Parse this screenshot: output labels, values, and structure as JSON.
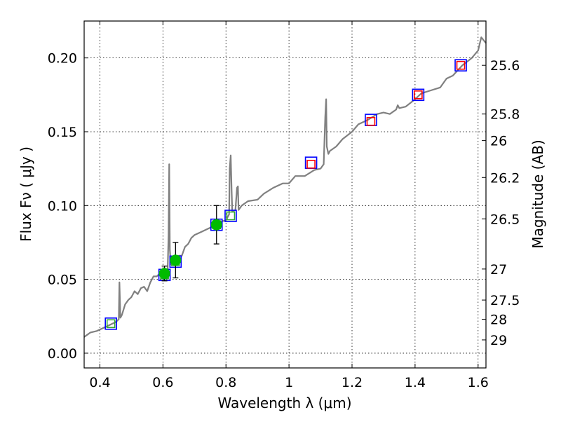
{
  "chart_data": {
    "type": "scatter",
    "xlabel": "Wavelength  λ (μm)",
    "ylabel": "Flux  Fν  ( μJy )",
    "y2label": "Magnitude (AB)",
    "xlim": [
      0.35,
      1.625
    ],
    "ylim": [
      -0.01,
      0.225
    ],
    "grid": true,
    "x_ticks": [
      0.4,
      0.6,
      0.8,
      1.0,
      1.2,
      1.4,
      1.6
    ],
    "x_tick_labels": [
      "0.4",
      "0.6",
      "0.8",
      "1",
      "1.2",
      "1.4",
      "1.6"
    ],
    "y_ticks": [
      0.0,
      0.05,
      0.1,
      0.15,
      0.2
    ],
    "y_tick_labels": [
      "0.00",
      "0.05",
      "0.10",
      "0.15",
      "0.20"
    ],
    "y2_ticks": [
      {
        "flux": 0.195,
        "label": "25.6"
      },
      {
        "flux": 0.162,
        "label": "25.8"
      },
      {
        "flux": 0.144,
        "label": "26"
      },
      {
        "flux": 0.119,
        "label": "26.2"
      },
      {
        "flux": 0.091,
        "label": "26.5"
      },
      {
        "flux": 0.057,
        "label": "27"
      },
      {
        "flux": 0.036,
        "label": "27.5"
      },
      {
        "flux": 0.023,
        "label": "28"
      },
      {
        "flux": 0.009,
        "label": "29"
      }
    ],
    "series": [
      {
        "kind": "line",
        "color": "#808080",
        "x": [
          0.35,
          0.37,
          0.39,
          0.41,
          0.43,
          0.44,
          0.45,
          0.455,
          0.46,
          0.462,
          0.465,
          0.47,
          0.48,
          0.49,
          0.5,
          0.51,
          0.52,
          0.53,
          0.54,
          0.55,
          0.56,
          0.57,
          0.58,
          0.59,
          0.6,
          0.61,
          0.615,
          0.618,
          0.62,
          0.622,
          0.625,
          0.63,
          0.64,
          0.65,
          0.66,
          0.67,
          0.68,
          0.69,
          0.7,
          0.72,
          0.74,
          0.76,
          0.78,
          0.8,
          0.81,
          0.812,
          0.815,
          0.818,
          0.82,
          0.83,
          0.835,
          0.838,
          0.84,
          0.85,
          0.87,
          0.9,
          0.92,
          0.95,
          0.98,
          1.0,
          1.02,
          1.05,
          1.08,
          1.1,
          1.11,
          1.115,
          1.118,
          1.12,
          1.125,
          1.13,
          1.15,
          1.17,
          1.2,
          1.22,
          1.25,
          1.28,
          1.3,
          1.32,
          1.34,
          1.345,
          1.35,
          1.37,
          1.4,
          1.42,
          1.45,
          1.48,
          1.5,
          1.52,
          1.55,
          1.58,
          1.6,
          1.61,
          1.625
        ],
        "y": [
          0.011,
          0.014,
          0.015,
          0.017,
          0.019,
          0.02,
          0.021,
          0.022,
          0.023,
          0.048,
          0.024,
          0.026,
          0.033,
          0.036,
          0.038,
          0.042,
          0.04,
          0.044,
          0.045,
          0.042,
          0.048,
          0.052,
          0.052,
          0.054,
          0.054,
          0.056,
          0.057,
          0.08,
          0.128,
          0.07,
          0.06,
          0.062,
          0.063,
          0.066,
          0.066,
          0.072,
          0.074,
          0.078,
          0.08,
          0.082,
          0.084,
          0.086,
          0.089,
          0.09,
          0.094,
          0.125,
          0.134,
          0.11,
          0.096,
          0.097,
          0.112,
          0.113,
          0.097,
          0.1,
          0.103,
          0.104,
          0.108,
          0.112,
          0.115,
          0.115,
          0.12,
          0.12,
          0.124,
          0.125,
          0.128,
          0.16,
          0.172,
          0.14,
          0.135,
          0.137,
          0.14,
          0.145,
          0.15,
          0.155,
          0.158,
          0.162,
          0.163,
          0.162,
          0.165,
          0.168,
          0.166,
          0.167,
          0.172,
          0.176,
          0.178,
          0.18,
          0.186,
          0.188,
          0.195,
          0.2,
          0.205,
          0.214,
          0.21
        ]
      },
      {
        "kind": "open-square",
        "color": "#0000ff",
        "x": [
          0.435,
          0.605,
          0.64,
          0.77,
          0.815,
          1.07,
          1.26,
          1.41,
          1.545
        ],
        "y": [
          0.02,
          0.053,
          0.062,
          0.087,
          0.093,
          0.129,
          0.158,
          0.175,
          0.195
        ]
      },
      {
        "kind": "open-square",
        "color": "#ff0000",
        "x": [
          1.07,
          1.26,
          1.41,
          1.545
        ],
        "y": [
          0.128,
          0.157,
          0.175,
          0.195
        ]
      },
      {
        "kind": "open-square",
        "color": "#33aa33",
        "x": [
          0.435,
          0.605,
          0.64,
          0.77,
          0.815
        ],
        "y": [
          0.02,
          0.053,
          0.062,
          0.087,
          0.093
        ]
      },
      {
        "kind": "filled-circle",
        "color": "#00bb00",
        "x": [
          0.605,
          0.64,
          0.77
        ],
        "y": [
          0.054,
          0.063,
          0.087
        ],
        "yerr": [
          0.005,
          0.012,
          0.013
        ]
      }
    ]
  }
}
